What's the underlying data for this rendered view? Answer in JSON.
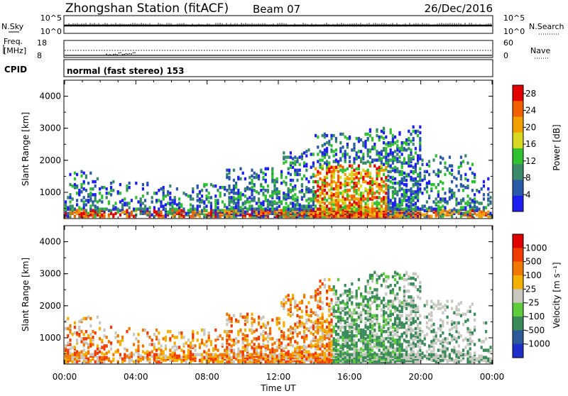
{
  "header": {
    "station": "Zhongshan Station (fitACF)",
    "beam": "Beam 07",
    "date": "26/Dec/2016"
  },
  "sky_panel": {
    "left_label": "N.Sky",
    "right_label": "N.Search",
    "left_ticks": [
      "10^5",
      "10^0"
    ],
    "right_ticks": [
      "10^5",
      "10^0"
    ]
  },
  "freq_panel": {
    "left_label_top": "Freq.",
    "left_label_unit": "[MHz]",
    "right_label": "Nave",
    "left_ticks": [
      "18",
      "8"
    ],
    "right_ticks": [
      "60",
      "0"
    ]
  },
  "cpid": {
    "label": "CPID",
    "mode": "normal (fast stereo) 153"
  },
  "chart_data": [
    {
      "type": "heatmap",
      "title": "Power",
      "ylabel": "Slant Range [km]",
      "xlabel": "",
      "yticks": [
        "1000",
        "2000",
        "3000",
        "4000"
      ],
      "ylim": [
        180,
        4500
      ],
      "xlim_hours": [
        0,
        24
      ],
      "colorbar_label": "Power [dB]",
      "colorbar_ticks": [
        "4",
        "8",
        "12",
        "16",
        "20",
        "24",
        "28"
      ],
      "colorbar_range": [
        0,
        30
      ],
      "colors": [
        "#1e1ef0",
        "#2a5aa8",
        "#3a8a6a",
        "#30c030",
        "#d8d820",
        "#f0a000",
        "#f06000",
        "#e00000"
      ]
    },
    {
      "type": "heatmap",
      "title": "Velocity",
      "ylabel": "Slant Range [km]",
      "xlabel": "Time UT",
      "xticks": [
        "00:00",
        "04:00",
        "08:00",
        "12:00",
        "16:00",
        "20:00",
        "00:00"
      ],
      "yticks": [
        "1000",
        "2000",
        "3000",
        "4000"
      ],
      "ylim": [
        180,
        4500
      ],
      "xlim_hours": [
        0,
        24
      ],
      "colorbar_label": "Velocity [m s⁻¹]",
      "colorbar_ticks": [
        "1000",
        "500",
        "100",
        "25",
        "-25",
        "-100",
        "-500",
        "-1000"
      ],
      "colors": [
        "#1e2ec8",
        "#2e5a9a",
        "#3a8a5a",
        "#5ccc3c",
        "#c8c8c0",
        "#f4b000",
        "#f07800",
        "#f03c00",
        "#e00000"
      ]
    }
  ]
}
